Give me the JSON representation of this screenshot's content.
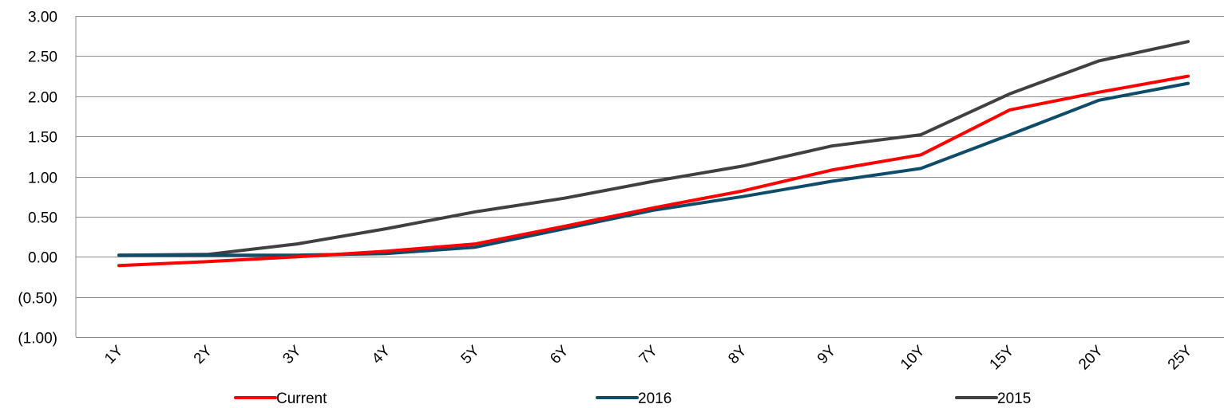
{
  "chart_data": {
    "type": "line",
    "categories": [
      "1Y",
      "2Y",
      "3Y",
      "4Y",
      "5Y",
      "6Y",
      "7Y",
      "8Y",
      "9Y",
      "10Y",
      "15Y",
      "20Y",
      "25Y"
    ],
    "ylim": [
      -1.0,
      3.0
    ],
    "y_ticks": [
      -1.0,
      -0.5,
      0.0,
      0.5,
      1.0,
      1.5,
      2.0,
      2.5,
      3.0
    ],
    "y_tick_labels": [
      "(1.00)",
      "(0.50)",
      "0.00",
      "0.50",
      "1.00",
      "1.50",
      "2.00",
      "2.50",
      "3.00"
    ],
    "grid": "horizontal",
    "legend_position": "bottom",
    "series": [
      {
        "name": "Current",
        "color": "#ff0000",
        "values": [
          -0.11,
          -0.06,
          0.0,
          0.07,
          0.16,
          0.38,
          0.61,
          0.82,
          1.08,
          1.27,
          1.83,
          2.05,
          2.25
        ]
      },
      {
        "name": "2016",
        "color": "#0e4c6a",
        "values": [
          0.02,
          0.02,
          0.02,
          0.04,
          0.12,
          0.35,
          0.58,
          0.75,
          0.94,
          1.1,
          1.52,
          1.95,
          2.16
        ]
      },
      {
        "name": "2015",
        "color": "#404040",
        "values": [
          0.02,
          0.03,
          0.16,
          0.35,
          0.56,
          0.73,
          0.94,
          1.13,
          1.38,
          1.52,
          2.03,
          2.44,
          2.68
        ]
      }
    ]
  }
}
